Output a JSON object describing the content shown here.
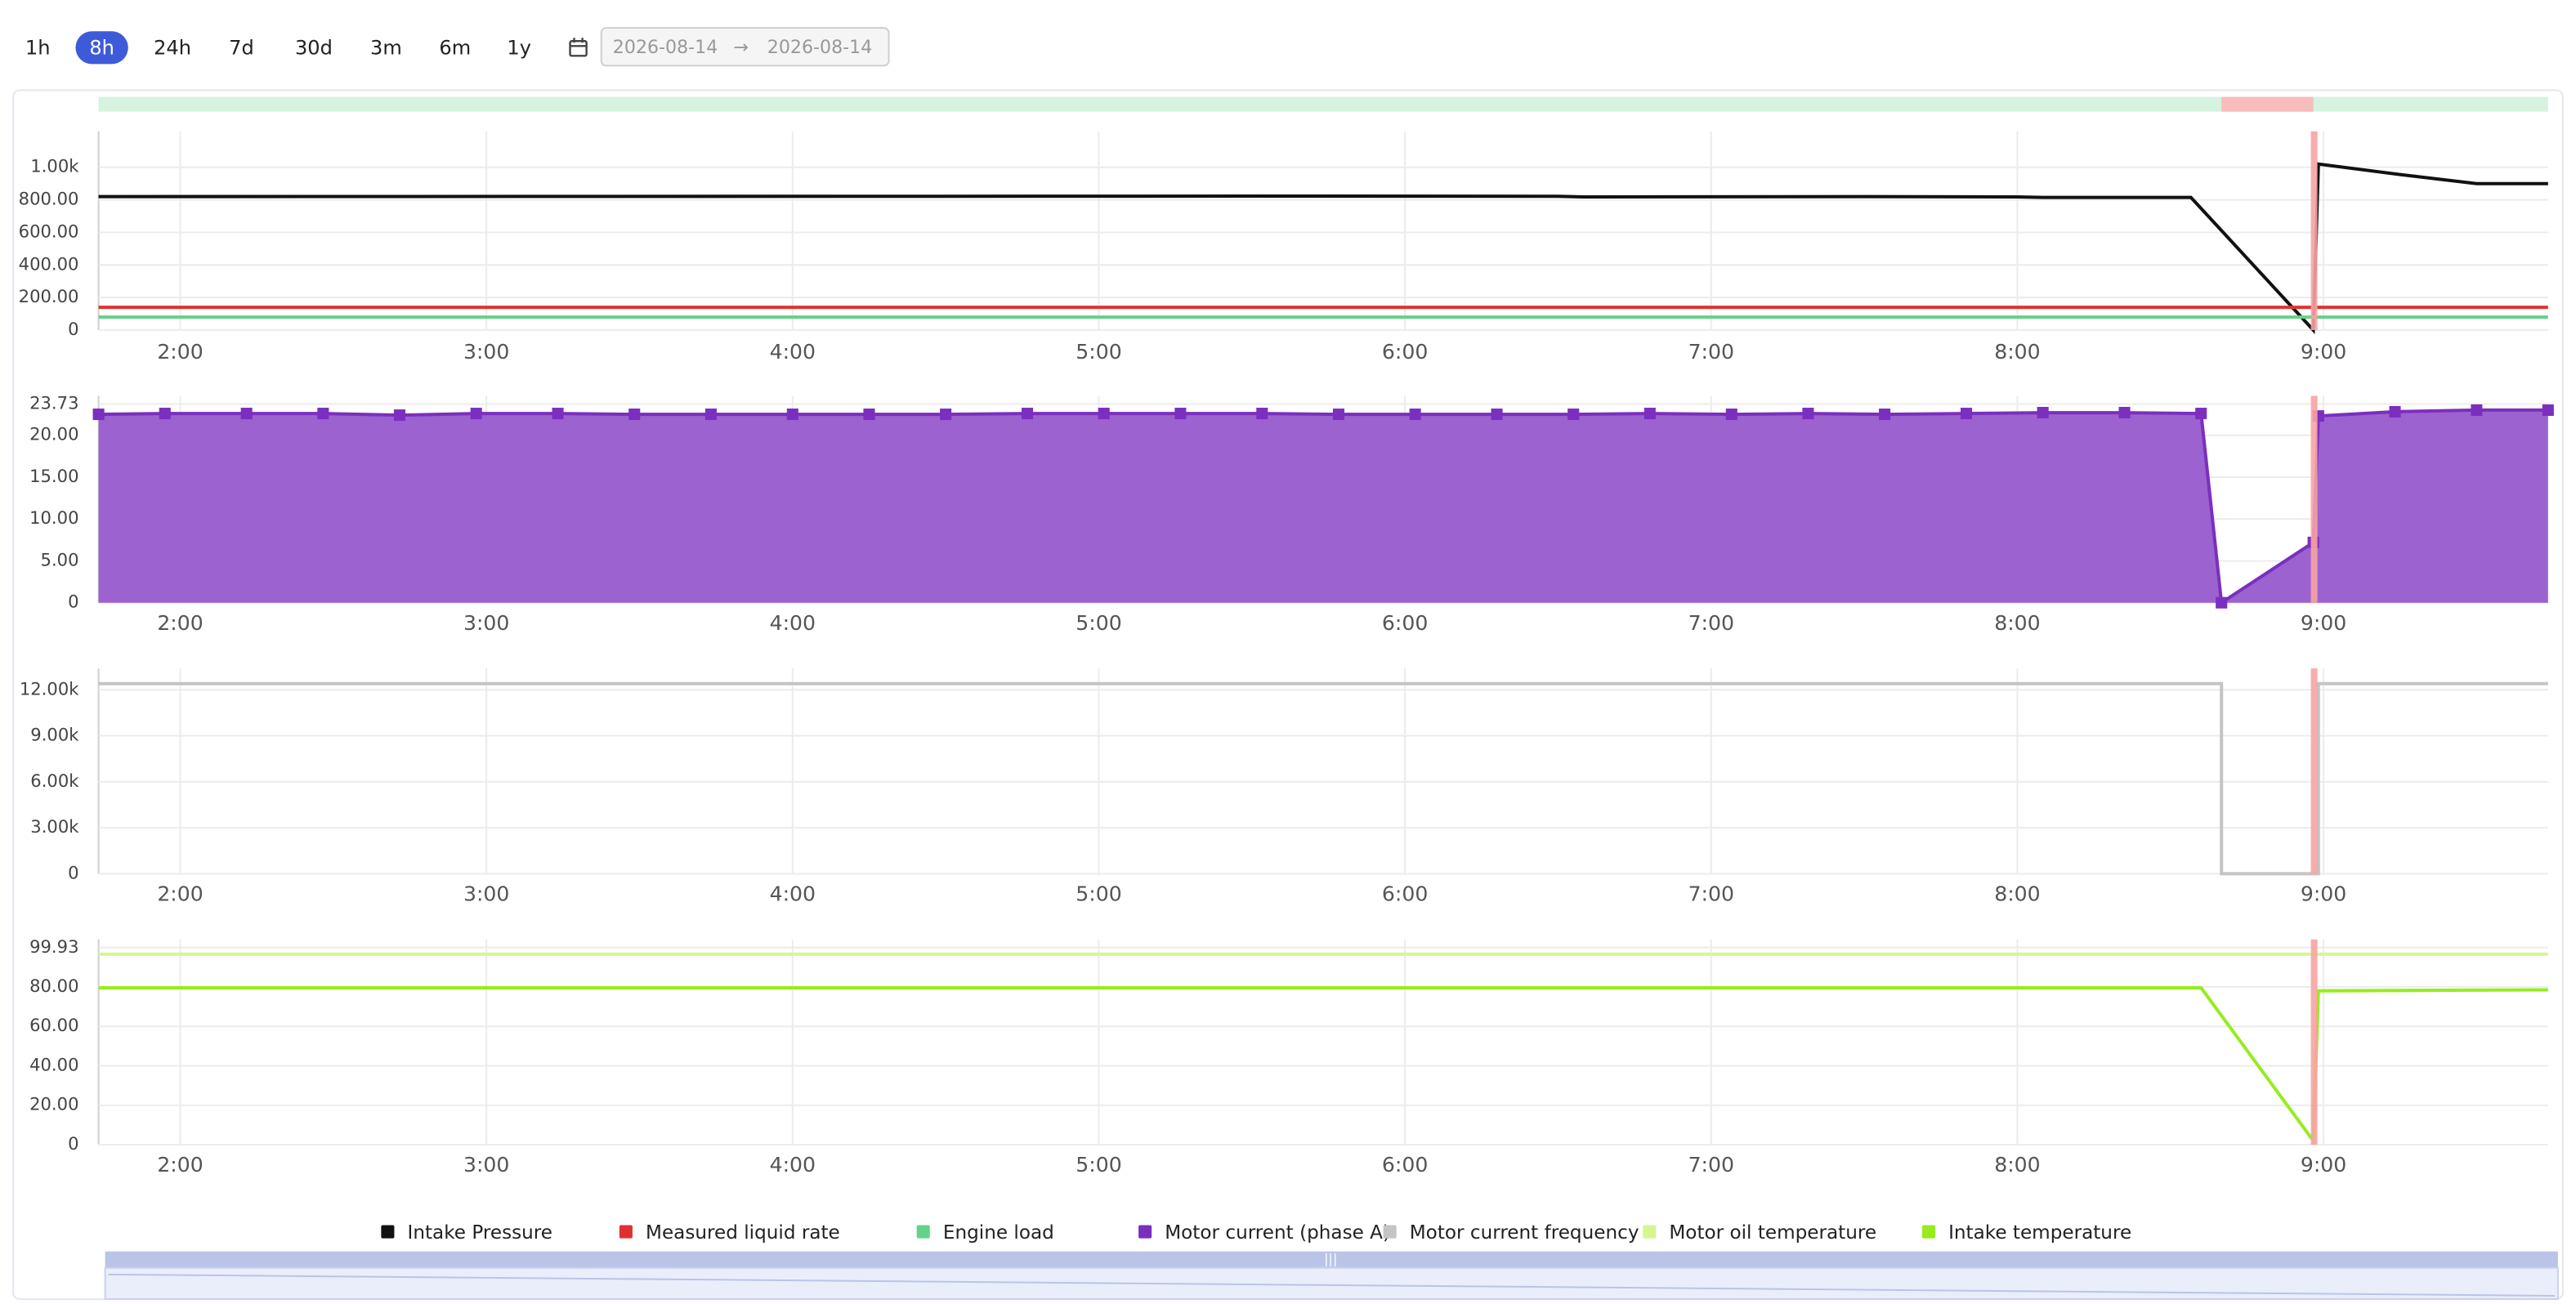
{
  "toolbar": {
    "ranges": [
      "1h",
      "8h",
      "24h",
      "7d",
      "30d",
      "3m",
      "6m",
      "1y"
    ],
    "active": 1,
    "date_from": "2026-08-14",
    "separator": "→",
    "date_to": "2026-08-14"
  },
  "timeline": {
    "normal_color": "#d5f3df",
    "alarm_color": "#f9bcbc",
    "alarm_start": "8:40",
    "alarm_end": "8:58"
  },
  "chart_data": [
    {
      "type": "line",
      "xlim": [
        "1:44",
        "9:44"
      ],
      "xticks": [
        "2:00",
        "3:00",
        "4:00",
        "5:00",
        "6:00",
        "7:00",
        "8:00",
        "9:00"
      ],
      "ylim": [
        0,
        1170
      ],
      "yticks": [
        0,
        {
          "value": 200,
          "label": "200.00"
        },
        {
          "value": 400,
          "label": "400.00"
        },
        {
          "value": 600,
          "label": "600.00"
        },
        {
          "value": 800,
          "label": "800.00"
        },
        {
          "value": 1000,
          "label": "1.00k"
        }
      ],
      "grid": true,
      "series": [
        {
          "name": "Intake Pressure",
          "color": "#111111",
          "x": [
            "1:44",
            "4:30",
            "5:30",
            "6:30",
            "6:35",
            "7:30",
            "8:00",
            "8:05",
            "8:34",
            "8:58",
            "8:59",
            "9:15",
            "9:30",
            "9:44"
          ],
          "values": [
            820,
            822,
            823,
            822,
            818,
            820,
            818,
            815,
            815,
            0,
            1020,
            955,
            900,
            900
          ]
        },
        {
          "name": "Measured liquid rate",
          "color": "#e03131",
          "x": [
            "1:44",
            "9:44"
          ],
          "values": [
            140,
            140
          ]
        },
        {
          "name": "Engine load",
          "color": "#63d38a",
          "x": [
            "1:44",
            "9:44"
          ],
          "values": [
            80,
            80
          ]
        }
      ]
    },
    {
      "type": "area",
      "markers": true,
      "xlim": [
        "1:44",
        "9:44"
      ],
      "xticks": [
        "2:00",
        "3:00",
        "4:00",
        "5:00",
        "6:00",
        "7:00",
        "8:00",
        "9:00"
      ],
      "ylim": [
        0,
        23.73
      ],
      "yticks": [
        0,
        {
          "value": 5,
          "label": "5.00"
        },
        {
          "value": 10,
          "label": "10.00"
        },
        {
          "value": 15,
          "label": "15.00"
        },
        {
          "value": 20,
          "label": "20.00"
        },
        23.73
      ],
      "grid": true,
      "series": [
        {
          "name": "Motor current (phase A)",
          "color": "#7b2fbe",
          "fill": "#9c62d0",
          "x": [
            "1:44",
            "1:57",
            "2:13",
            "2:28",
            "2:43",
            "2:58",
            "3:14",
            "3:29",
            "3:44",
            "4:00",
            "4:15",
            "4:30",
            "4:46",
            "5:01",
            "5:16",
            "5:32",
            "5:47",
            "6:02",
            "6:18",
            "6:33",
            "6:48",
            "7:04",
            "7:19",
            "7:34",
            "7:50",
            "8:05",
            "8:21",
            "8:36",
            "8:40",
            "8:58",
            "8:59",
            "9:14",
            "9:30",
            "9:44"
          ],
          "values": [
            22.5,
            22.6,
            22.6,
            22.6,
            22.4,
            22.6,
            22.6,
            22.5,
            22.5,
            22.5,
            22.5,
            22.5,
            22.6,
            22.6,
            22.6,
            22.6,
            22.5,
            22.5,
            22.5,
            22.5,
            22.6,
            22.5,
            22.6,
            22.5,
            22.6,
            22.7,
            22.7,
            22.6,
            0,
            7.2,
            22.3,
            22.8,
            23.0,
            23.0
          ]
        }
      ]
    },
    {
      "type": "line",
      "xlim": [
        "1:44",
        "9:44"
      ],
      "xticks": [
        "2:00",
        "3:00",
        "4:00",
        "5:00",
        "6:00",
        "7:00",
        "8:00",
        "9:00"
      ],
      "ylim": [
        0,
        12860
      ],
      "yticks": [
        0,
        {
          "value": 3000,
          "label": "3.00k"
        },
        {
          "value": 6000,
          "label": "6.00k"
        },
        {
          "value": 9000,
          "label": "9.00k"
        },
        {
          "value": 12000,
          "label": "12.00k"
        }
      ],
      "grid": true,
      "series": [
        {
          "name": "Motor current frequency",
          "color": "#c4c4c4",
          "x": [
            "1:44",
            "8:40",
            "8:40",
            "8:59",
            "8:59",
            "9:44"
          ],
          "values": [
            12400,
            12400,
            0,
            0,
            12400,
            12400
          ]
        }
      ]
    },
    {
      "type": "line",
      "xlim": [
        "1:44",
        "9:44"
      ],
      "xticks": [
        "2:00",
        "3:00",
        "4:00",
        "5:00",
        "6:00",
        "7:00",
        "8:00",
        "9:00"
      ],
      "ylim": [
        0,
        99.93
      ],
      "yticks": [
        0,
        {
          "value": 20,
          "label": "20.00"
        },
        {
          "value": 40,
          "label": "40.00"
        },
        {
          "value": 60,
          "label": "60.00"
        },
        {
          "value": 80,
          "label": "80.00"
        },
        99.93
      ],
      "grid": true,
      "series": [
        {
          "name": "Motor oil temperature",
          "color": "#d6f78e",
          "x": [
            "1:44",
            "9:44"
          ],
          "values": [
            96.6,
            96.6
          ]
        },
        {
          "name": "Intake temperature",
          "color": "#97ec1f",
          "x": [
            "1:44",
            "8:36",
            "8:58",
            "8:59",
            "9:44"
          ],
          "values": [
            79.5,
            79.5,
            2,
            78,
            78.5
          ]
        }
      ]
    }
  ]
}
